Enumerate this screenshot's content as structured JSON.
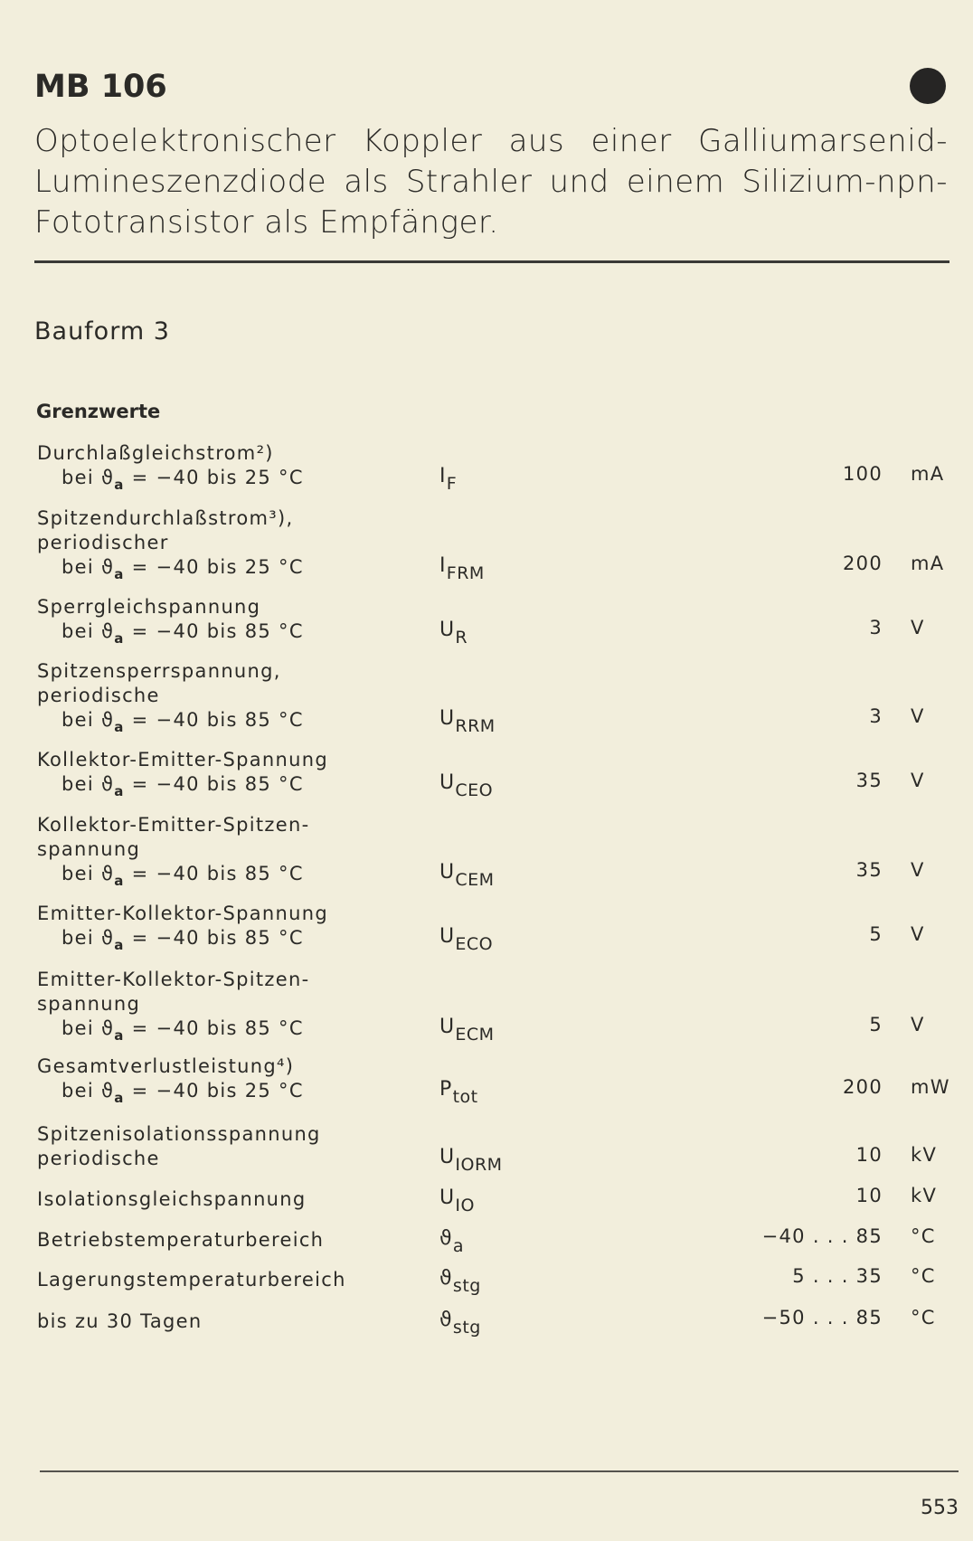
{
  "header": {
    "title": "MB 106",
    "description": "Optoelektronischer Koppler aus einer Gallium­arsenid-Lumineszenzdiode als Strahler und einem Silizium-npn-Fototransistor als Empfänger."
  },
  "bauform": "Bauform 3",
  "section_title": "Grenzwerte",
  "rows": [
    {
      "label": [
        "Durchlaßgleichstrom²)"
      ],
      "cond": [
        "bei ϑ",
        "a",
        " = −40 bis 25 °C"
      ],
      "symbol": [
        "I",
        "F"
      ],
      "value": "100",
      "unit": "mA"
    },
    {
      "label": [
        "Spitzendurchlaßstrom³),",
        "periodischer"
      ],
      "cond": [
        "bei ϑ",
        "a",
        " = −40 bis 25 °C"
      ],
      "symbol": [
        "I",
        "FRM"
      ],
      "value": "200",
      "unit": "mA"
    },
    {
      "label": [
        "Sperrgleichspannung"
      ],
      "cond": [
        "bei ϑ",
        "a",
        " = −40 bis 85 °C"
      ],
      "symbol": [
        "U",
        "R"
      ],
      "value": "3",
      "unit": "V"
    },
    {
      "label": [
        "Spitzensperrspannung,",
        "periodische"
      ],
      "cond": [
        "bei ϑ",
        "a",
        " = −40 bis 85 °C"
      ],
      "symbol": [
        "U",
        "RRM"
      ],
      "value": "3",
      "unit": "V"
    },
    {
      "label": [
        "Kollektor-Emitter-Spannung"
      ],
      "cond": [
        "bei ϑ",
        "a",
        " = −40 bis 85 °C"
      ],
      "symbol": [
        "U",
        "CEO"
      ],
      "value": "35",
      "unit": "V"
    },
    {
      "label": [
        "Kollektor-Emitter-Spitzen-",
        "spannung"
      ],
      "cond": [
        "bei ϑ",
        "a",
        " = −40 bis 85 °C"
      ],
      "symbol": [
        "U",
        "CEM"
      ],
      "value": "35",
      "unit": "V"
    },
    {
      "label": [
        "Emitter-Kollektor-Spannung"
      ],
      "cond": [
        "bei ϑ",
        "a",
        " = −40 bis 85 °C"
      ],
      "symbol": [
        "U",
        "ECO"
      ],
      "value": "5",
      "unit": "V"
    },
    {
      "label": [
        "Emitter-Kollektor-Spitzen-",
        "spannung"
      ],
      "cond": [
        "bei ϑ",
        "a",
        " = −40 bis 85 °C"
      ],
      "symbol": [
        "U",
        "ECM"
      ],
      "value": "5",
      "unit": "V"
    },
    {
      "label": [
        "Gesamtverlustleistung⁴)"
      ],
      "cond": [
        "bei ϑ",
        "a",
        " = −40 bis 25 °C"
      ],
      "symbol": [
        "P",
        "tot"
      ],
      "value": "200",
      "unit": "mW"
    },
    {
      "label": [
        "Spitzenisolationsspannung",
        "periodische"
      ],
      "cond": null,
      "symbol": [
        "U",
        "IORM"
      ],
      "value": "10",
      "unit": "kV"
    },
    {
      "label": [
        "Isolationsgleichspannung"
      ],
      "cond": null,
      "symbol": [
        "U",
        "IO"
      ],
      "value": "10",
      "unit": "kV"
    },
    {
      "label": [
        "Betriebstemperaturbereich"
      ],
      "cond": null,
      "symbol": [
        "ϑ",
        "a"
      ],
      "value": "−40 . . . 85",
      "unit": "°C"
    },
    {
      "label": [
        "Lagerungstemperaturbereich"
      ],
      "cond": null,
      "symbol": [
        "ϑ",
        "stg"
      ],
      "value": "5 . . . 35",
      "unit": "°C"
    },
    {
      "label": [
        "bis zu 30 Tagen"
      ],
      "cond": null,
      "symbol": [
        "ϑ",
        "stg"
      ],
      "value": "−50 . . . 85",
      "unit": "°C"
    }
  ],
  "page_number": "553",
  "colors": {
    "paper": "#f2eedc",
    "ink": "#2b2a27"
  }
}
